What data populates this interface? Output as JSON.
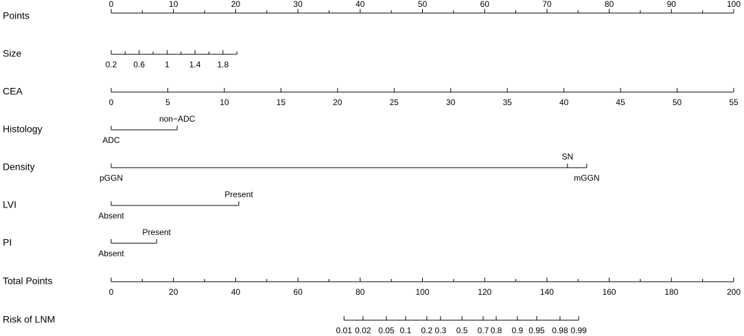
{
  "chart_data": {
    "type": "nomogram",
    "points_range": [
      0,
      100
    ],
    "rows": [
      {
        "label": "Points",
        "kind": "scale",
        "lim": [
          0,
          100
        ],
        "points_lim": [
          0,
          100
        ],
        "label_side": "above",
        "ticks": [
          0,
          10,
          20,
          30,
          40,
          50,
          60,
          70,
          80,
          90,
          100
        ],
        "minor_ticks": [
          5,
          15,
          25,
          35,
          45,
          55,
          65,
          75,
          85,
          95
        ]
      },
      {
        "label": "Size",
        "kind": "scale",
        "lim": [
          0.2,
          2.0
        ],
        "points_lim": [
          0,
          20.2
        ],
        "label_side": "below",
        "ticks": [
          0.2,
          0.6,
          1,
          1.4,
          1.8
        ],
        "minor_ticks": [
          0.4,
          0.8,
          1.2,
          1.6,
          2.0
        ]
      },
      {
        "label": "CEA",
        "kind": "scale",
        "lim": [
          0,
          55
        ],
        "points_lim": [
          0,
          100
        ],
        "label_side": "below",
        "ticks": [
          0,
          5,
          10,
          15,
          20,
          25,
          30,
          35,
          40,
          45,
          50,
          55
        ],
        "minor_ticks": []
      },
      {
        "label": "Histology",
        "kind": "categorical",
        "levels": [
          "ADC",
          "non−ADC"
        ],
        "points": [
          0,
          10.6
        ],
        "level_sides": [
          "below",
          "above"
        ]
      },
      {
        "label": "Density",
        "kind": "categorical",
        "levels": [
          "pGGN",
          "SN",
          "mGGN"
        ],
        "points": [
          0,
          73.3,
          76.4
        ],
        "level_sides": [
          "below",
          "above",
          "below"
        ]
      },
      {
        "label": "LVI",
        "kind": "categorical",
        "levels": [
          "Absent",
          "Present"
        ],
        "points": [
          0,
          20.5
        ],
        "level_sides": [
          "below",
          "above"
        ]
      },
      {
        "label": "PI",
        "kind": "categorical",
        "levels": [
          "Absent",
          "Present"
        ],
        "points": [
          0,
          7.3
        ],
        "level_sides": [
          "below",
          "above"
        ]
      },
      {
        "label": "Total Points",
        "kind": "total",
        "lim": [
          0,
          200
        ],
        "points_lim": [
          0,
          100
        ],
        "label_side": "below",
        "ticks": [
          0,
          20,
          40,
          60,
          80,
          100,
          120,
          140,
          160,
          180,
          200
        ],
        "minor_ticks": [
          10,
          30,
          50,
          70,
          90,
          110,
          130,
          150,
          170,
          190
        ]
      },
      {
        "label": "Risk of LNM",
        "kind": "risk",
        "label_side": "below",
        "ticks": [
          0.01,
          0.02,
          0.05,
          0.1,
          0.2,
          0.3,
          0.5,
          0.7,
          0.8,
          0.9,
          0.95,
          0.98,
          0.99
        ],
        "tick_total_points": [
          74.8,
          80.9,
          88.4,
          94.6,
          101.4,
          105.8,
          112.7,
          119.5,
          123.7,
          130.5,
          136.7,
          144.2,
          150.2
        ]
      }
    ]
  }
}
